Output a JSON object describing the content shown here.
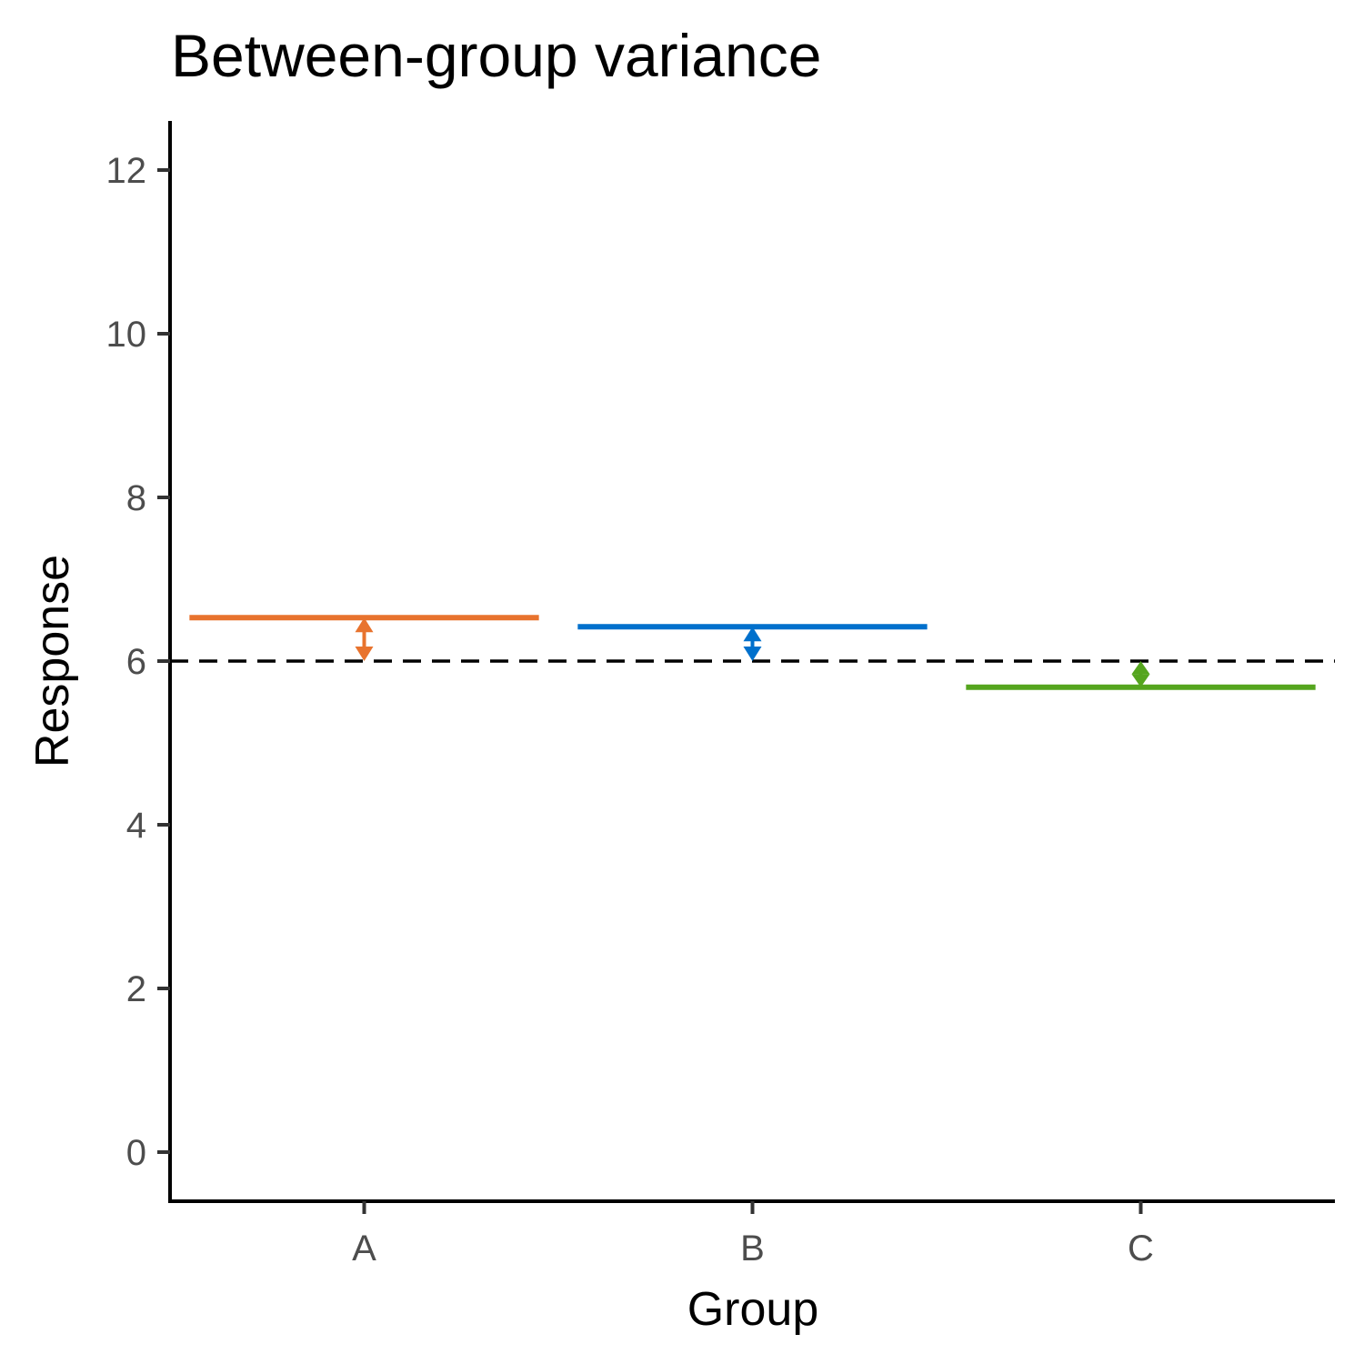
{
  "chart_data": {
    "type": "errorbar",
    "title": "Between-group variance",
    "xlabel": "Group",
    "ylabel": "Response",
    "categories": [
      "A",
      "B",
      "C"
    ],
    "group_means": [
      6.53,
      6.42,
      5.68
    ],
    "grand_mean": 6.0,
    "colors": [
      "#e8732e",
      "#0070cc",
      "#55a51e"
    ],
    "ylim": [
      -0.6,
      12.6
    ],
    "yticks": [
      0,
      2,
      4,
      6,
      8,
      10,
      12
    ],
    "ytick_labels": [
      "0",
      "2",
      "4",
      "6",
      "8",
      "10",
      "12"
    ],
    "grid": false,
    "legend": "none"
  }
}
